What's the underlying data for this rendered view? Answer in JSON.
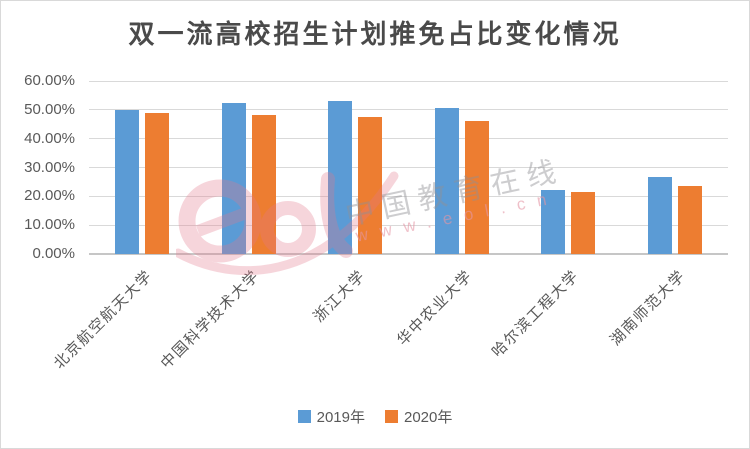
{
  "title": "双一流高校招生计划推免占比变化情况",
  "watermark": {
    "brand_text": "中国教育在线",
    "url_text": "www.eol.cn"
  },
  "legend": {
    "items": [
      {
        "label": "2019年",
        "color": "#5B9BD5"
      },
      {
        "label": "2020年",
        "color": "#ED7D31"
      }
    ]
  },
  "chart_data": {
    "type": "bar",
    "title": "双一流高校招生计划推免占比变化情况",
    "categories": [
      "北京航空航天大学",
      "中国科学技术大学",
      "浙江大学",
      "华中农业大学",
      "哈尔滨工程大学",
      "湖南师范大学"
    ],
    "series": [
      {
        "name": "2019年",
        "color": "#5B9BD5",
        "values": [
          49.9,
          52.4,
          52.9,
          50.6,
          22.2,
          26.7
        ]
      },
      {
        "name": "2020年",
        "color": "#ED7D31",
        "values": [
          48.8,
          48.3,
          47.6,
          46.0,
          21.4,
          23.6
        ]
      }
    ],
    "xlabel": "",
    "ylabel": "",
    "ylim": [
      0,
      60
    ],
    "yticks": [
      {
        "value": 60,
        "label": "60.00%"
      },
      {
        "value": 50,
        "label": "50.00%"
      },
      {
        "value": 40,
        "label": "40.00%"
      },
      {
        "value": 30,
        "label": "30.00%"
      },
      {
        "value": 20,
        "label": "20.00%"
      },
      {
        "value": 10,
        "label": "10.00%"
      },
      {
        "value": 0,
        "label": "0.00%"
      }
    ],
    "grid": true,
    "legend_position": "bottom"
  },
  "colors": {
    "series_2019": "#5B9BD5",
    "series_2020": "#ED7D31",
    "gridline": "#D9D9D9",
    "axis_line": "#C6C6C6",
    "axis_text": "#595959",
    "title_text": "#4A4A4A",
    "watermark_pink": "#E4788C",
    "watermark_gray": "#919194",
    "background": "#FFFFFF",
    "frame_border": "#D9D9D9"
  }
}
